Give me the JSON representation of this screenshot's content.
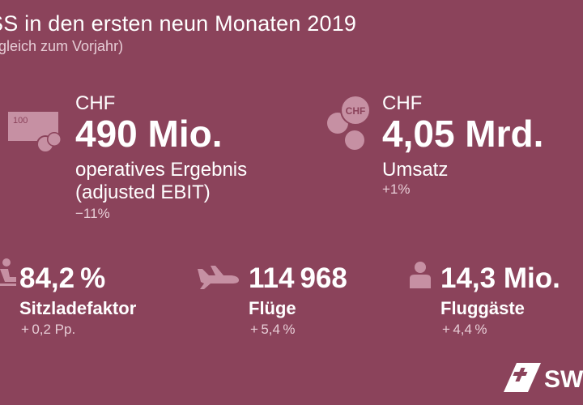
{
  "header": {
    "title": "SS in den ersten neun Monaten 2019",
    "subtitle": "rgleich zum Vorjahr)"
  },
  "kpis": {
    "ebit": {
      "currency": "CHF",
      "value": "490 Mio.",
      "label_line1": "operatives Ergebnis",
      "label_line2": "(adjusted EBIT)",
      "change": "−11%",
      "icon_text": "100"
    },
    "revenue": {
      "currency": "CHF",
      "value": "4,05 Mrd.",
      "label": "Umsatz",
      "change": "+1%",
      "icon_text": "CHF"
    },
    "load_factor": {
      "value": "84,2 %",
      "label": "Sitzladefaktor",
      "change": "+ 0,2 Pp."
    },
    "flights": {
      "value": "114 968",
      "label": "Flüge",
      "change": "+ 5,4 %"
    },
    "passengers": {
      "value": "14,3 Mio.",
      "label": "Fluggäste",
      "change": "+ 4,4 %"
    }
  },
  "logo": {
    "text": "SW"
  },
  "colors": {
    "background": "#8b435b",
    "icon": "#c690a3",
    "muted_text": "#e7cdd6"
  }
}
